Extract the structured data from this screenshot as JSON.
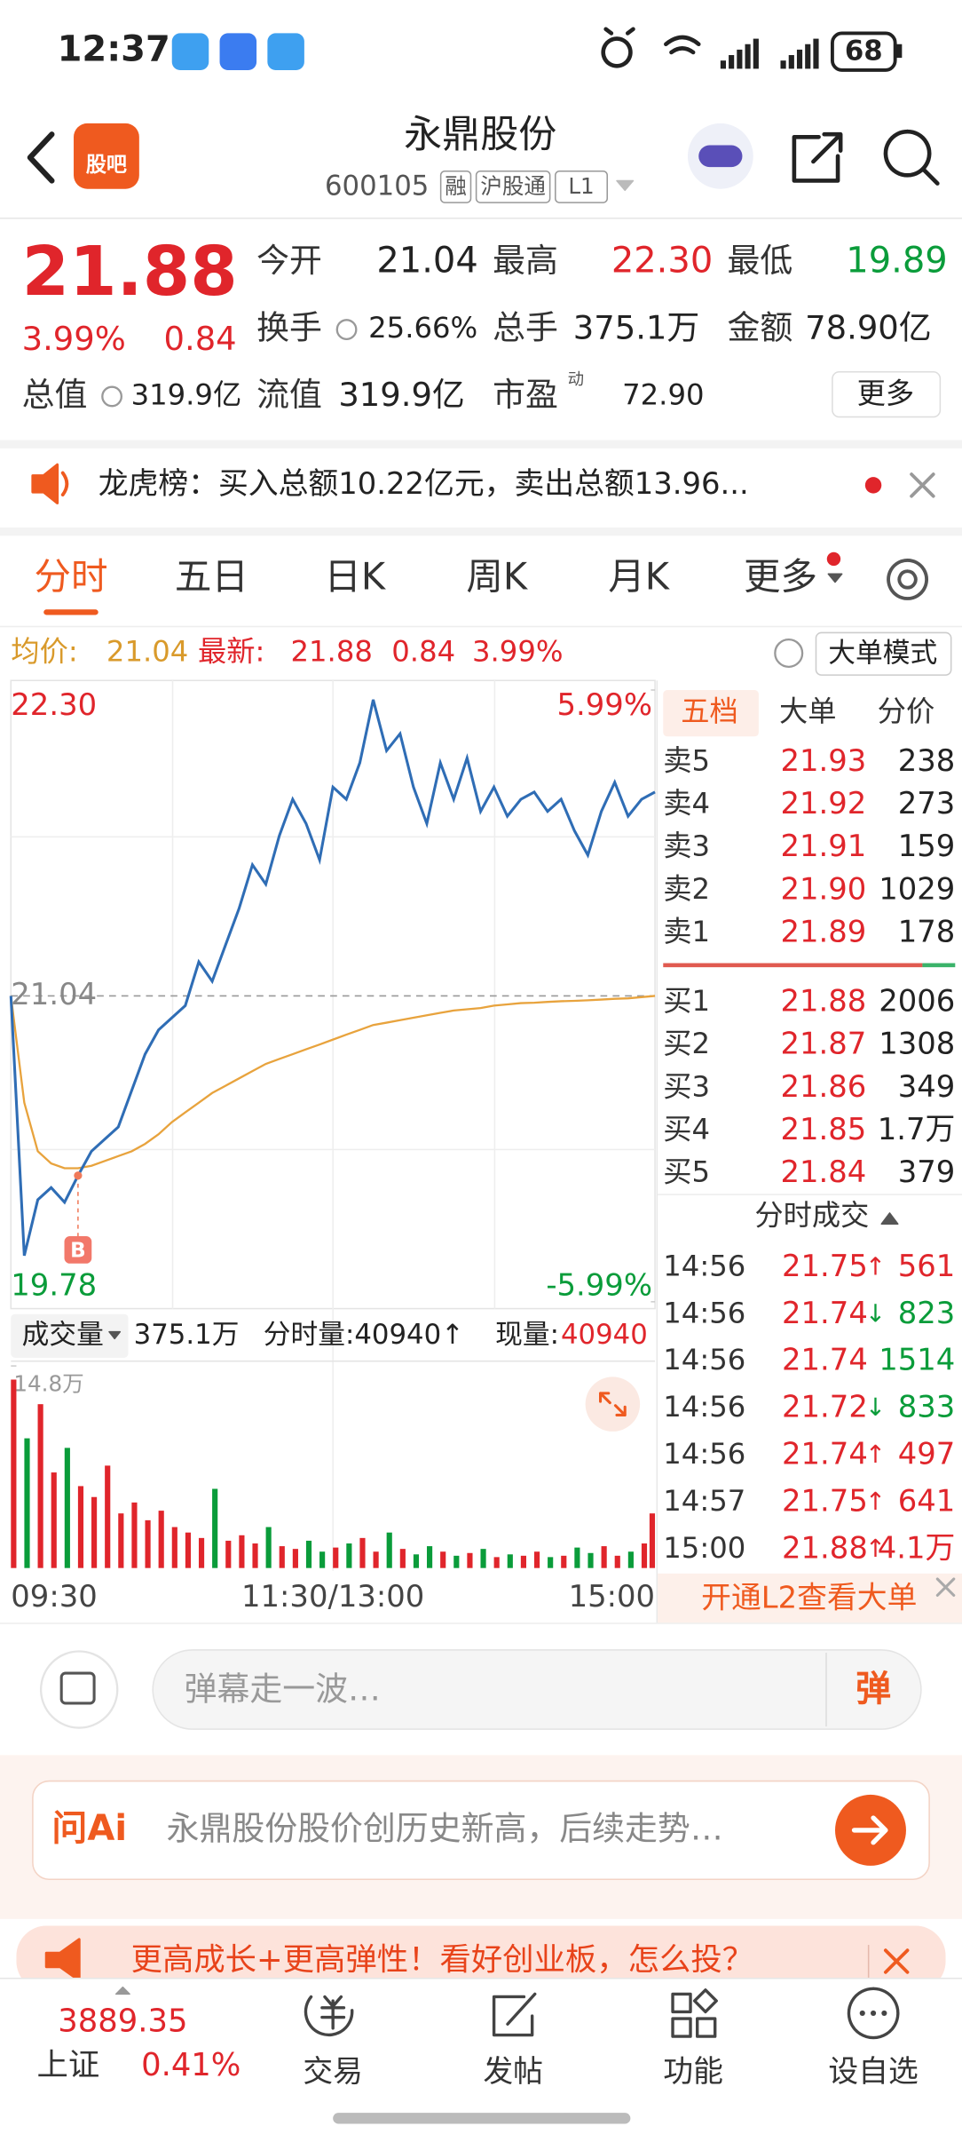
{
  "status_bar": {
    "time": "12:37",
    "battery": "68"
  },
  "header": {
    "logo": "股吧",
    "title": "永鼎股份",
    "code": "600105",
    "tags": [
      "融",
      "沪股通",
      "L1"
    ]
  },
  "quote": {
    "price": "21.88",
    "percent": "3.99%",
    "change": "0.84",
    "fields": [
      {
        "label": "今开",
        "value": "21.04"
      },
      {
        "label": "最高",
        "value": "22.30"
      },
      {
        "label": "最低",
        "value": "19.89"
      },
      {
        "label": "换手",
        "value": "25.66%"
      },
      {
        "label": "总手",
        "value": "375.1万"
      },
      {
        "label": "金额",
        "value": "78.90亿"
      },
      {
        "label": "总值",
        "value": "319.9亿"
      },
      {
        "label": "流值",
        "value": "319.9亿"
      },
      {
        "label": "市盈",
        "value": "72.90"
      }
    ],
    "pe_mark": "动",
    "more": "更多"
  },
  "notice": {
    "text": "龙虎榜：买入总额10.22亿元，卖出总额13.96..."
  },
  "tabs": [
    "分时",
    "五日",
    "日K",
    "周K",
    "月K",
    "更多"
  ],
  "info_bar": {
    "average_label": "均价:",
    "average": "21.04",
    "latest_label": "最新:",
    "latest": "21.88",
    "change": "0.84",
    "percent": "3.99%",
    "mode": "大单模式"
  },
  "intraday": {
    "xlim": [
      0,
      240
    ],
    "ylim": [
      19.78,
      22.3
    ],
    "yticks": [
      {
        "value": 22.3,
        "label": "22.30"
      },
      {
        "value": 21.04,
        "label": "21.04"
      },
      {
        "value": 19.78,
        "label": "19.78"
      }
    ],
    "y2lim": [
      -5.99,
      5.99
    ],
    "y2ticks": [
      {
        "value": 5.99,
        "label": "5.99%"
      },
      {
        "value": -5.99,
        "label": "-5.99%"
      }
    ],
    "xticks": [
      {
        "value": 0,
        "label": "09:30"
      },
      {
        "value": 120,
        "label": "11:30/13:00"
      },
      {
        "value": 240,
        "label": "15:00"
      }
    ],
    "minutes": [
      0,
      5,
      10,
      15,
      20,
      25,
      30,
      35,
      40,
      45,
      50,
      55,
      60,
      65,
      70,
      75,
      80,
      85,
      90,
      95,
      100,
      105,
      110,
      115,
      120,
      125,
      130,
      135,
      140,
      145,
      150,
      155,
      160,
      165,
      170,
      175,
      180,
      185,
      190,
      195,
      200,
      205,
      210,
      215,
      220,
      225,
      230,
      235,
      240
    ],
    "price": [
      21.04,
      19.97,
      20.2,
      20.25,
      20.19,
      20.3,
      20.4,
      20.45,
      20.5,
      20.65,
      20.8,
      20.9,
      20.95,
      21.0,
      21.18,
      21.1,
      21.25,
      21.4,
      21.58,
      21.5,
      21.7,
      21.85,
      21.75,
      21.6,
      21.9,
      21.85,
      22.0,
      22.26,
      22.05,
      22.12,
      21.9,
      21.75,
      22.0,
      21.85,
      22.02,
      21.8,
      21.9,
      21.78,
      21.85,
      21.88,
      21.8,
      21.85,
      21.72,
      21.62,
      21.8,
      21.92,
      21.78,
      21.85,
      21.88
    ],
    "average": [
      21.04,
      20.6,
      20.4,
      20.35,
      20.33,
      20.33,
      20.34,
      20.36,
      20.38,
      20.4,
      20.43,
      20.47,
      20.52,
      20.56,
      20.6,
      20.64,
      20.67,
      20.7,
      20.73,
      20.76,
      20.78,
      20.8,
      20.82,
      20.84,
      20.86,
      20.88,
      20.9,
      20.92,
      20.93,
      20.94,
      20.95,
      20.96,
      20.97,
      20.98,
      20.985,
      20.99,
      21.0,
      21.005,
      21.01,
      21.012,
      21.015,
      21.018,
      21.02,
      21.022,
      21.025,
      21.028,
      21.03,
      21.035,
      21.04
    ],
    "price_color": "#2f6db5",
    "average_color": "#e8a33d",
    "buy_signal": {
      "label": "B",
      "x": 25
    },
    "volume": {
      "label": "成交量",
      "total": "375.1万",
      "minute_volume": "分时量:40940↑",
      "current_label": "现量:",
      "current": "40940",
      "ylim": [
        0,
        148000
      ],
      "yticks": [
        {
          "value": 148000,
          "label": "14.8万"
        }
      ],
      "values": [
        138000,
        95000,
        120000,
        70000,
        88000,
        60000,
        52000,
        75000,
        40000,
        48000,
        35000,
        42000,
        30000,
        26000,
        22000,
        58000,
        20000,
        24000,
        18000,
        30000,
        16000,
        14000,
        20000,
        12000,
        15000,
        18000,
        22000,
        12000,
        26000,
        14000,
        10000,
        16000,
        12000,
        9000,
        11000,
        14000,
        8000,
        10000,
        9000,
        12000,
        8000,
        9000,
        15000,
        11000,
        16000,
        9000,
        12000,
        18000,
        40000
      ],
      "up_color": "#e0252b",
      "down_color": "#0a9c3a"
    }
  },
  "order_book": {
    "tabs": [
      "五档",
      "大单",
      "分价"
    ],
    "asks": [
      {
        "label": "卖5",
        "price": "21.93",
        "volume": "238"
      },
      {
        "label": "卖4",
        "price": "21.92",
        "volume": "273"
      },
      {
        "label": "卖3",
        "price": "21.91",
        "volume": "159"
      },
      {
        "label": "卖2",
        "price": "21.90",
        "volume": "1029"
      },
      {
        "label": "卖1",
        "price": "21.89",
        "volume": "178"
      }
    ],
    "bids": [
      {
        "label": "买1",
        "price": "21.88",
        "volume": "2006"
      },
      {
        "label": "买2",
        "price": "21.87",
        "volume": "1308"
      },
      {
        "label": "买3",
        "price": "21.86",
        "volume": "349"
      },
      {
        "label": "买4",
        "price": "21.85",
        "volume": "1.7万"
      },
      {
        "label": "买5",
        "price": "21.84",
        "volume": "379"
      }
    ],
    "trades_title": "分时成交",
    "trades": [
      {
        "time": "14:56",
        "price": "21.75",
        "arrow": "↑",
        "volume": "561",
        "color": "#e0252b"
      },
      {
        "time": "14:56",
        "price": "21.74",
        "arrow": "↓",
        "volume": "823",
        "color": "#0a9c3a"
      },
      {
        "time": "14:56",
        "price": "21.74",
        "arrow": "",
        "volume": "1514",
        "color": "#0a9c3a"
      },
      {
        "time": "14:56",
        "price": "21.72",
        "arrow": "↓",
        "volume": "833",
        "color": "#0a9c3a"
      },
      {
        "time": "14:56",
        "price": "21.74",
        "arrow": "↑",
        "volume": "497",
        "color": "#e0252b"
      },
      {
        "time": "14:57",
        "price": "21.75",
        "arrow": "↑",
        "volume": "641",
        "color": "#e0252b"
      },
      {
        "time": "15:00",
        "price": "21.88",
        "arrow": "↑",
        "volume": "4.1万",
        "color": "#e0252b"
      }
    ],
    "l2_link": "开通L2查看大单"
  },
  "comment": {
    "placeholder": "弹幕走一波…",
    "button": "弹"
  },
  "ai": {
    "logo": "问Ai",
    "prompt": "永鼎股份股价创历史新高，后续走势…"
  },
  "banner": {
    "text": "更高成长+更高弹性！看好创业板，怎么投？"
  },
  "bottom_bar": {
    "index_value": "3889.35",
    "index_name": "上证",
    "index_percent": "0.41%",
    "nav": [
      "交易",
      "发帖",
      "功能",
      "设自选"
    ]
  }
}
